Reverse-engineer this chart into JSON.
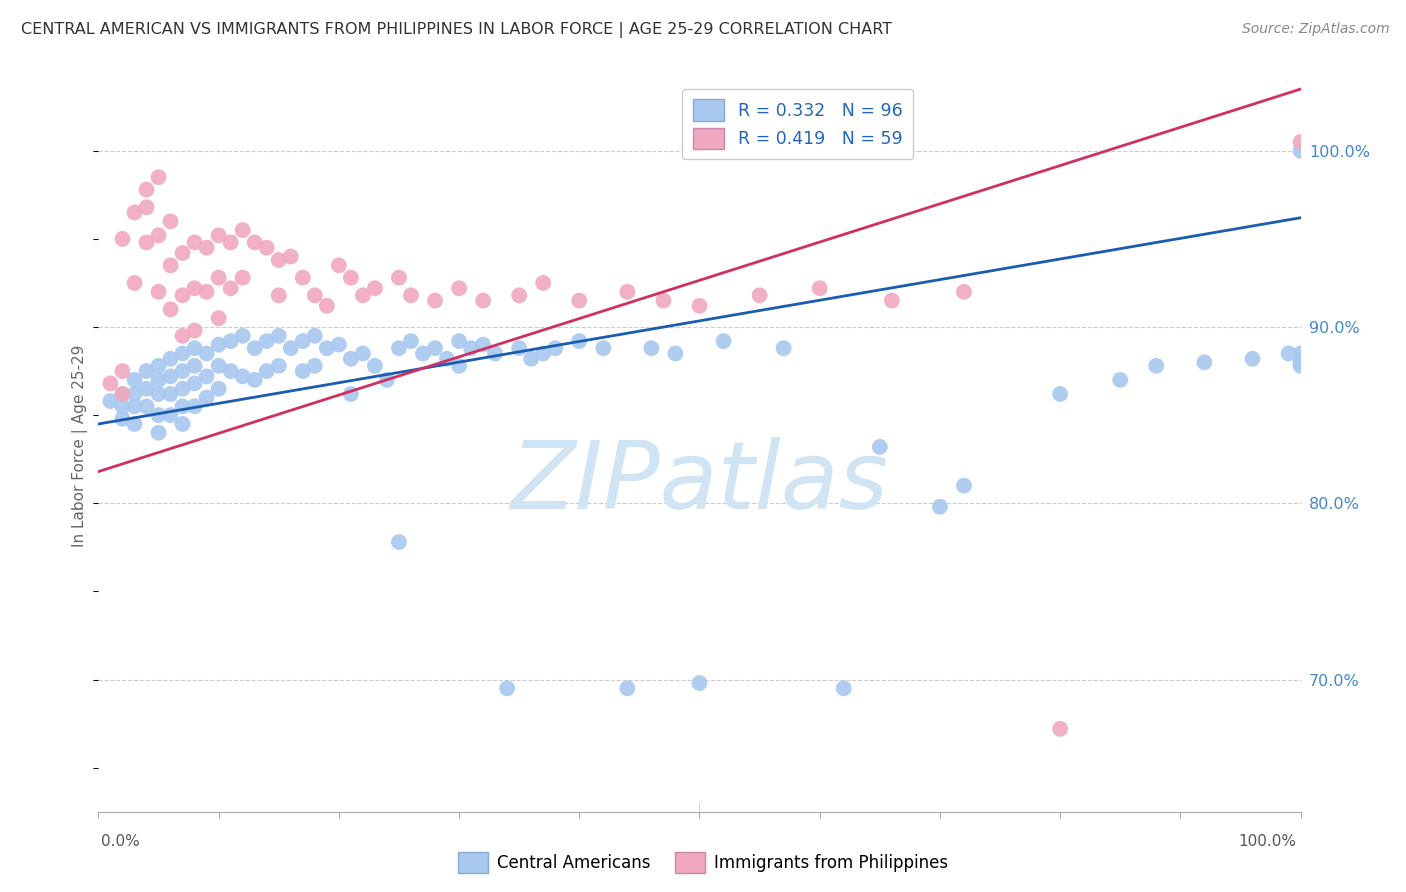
{
  "title": "CENTRAL AMERICAN VS IMMIGRANTS FROM PHILIPPINES IN LABOR FORCE | AGE 25-29 CORRELATION CHART",
  "source": "Source: ZipAtlas.com",
  "ylabel": "In Labor Force | Age 25-29",
  "right_ytick_vals": [
    0.7,
    0.8,
    0.9,
    1.0
  ],
  "right_ytick_labels": [
    "70.0%",
    "80.0%",
    "90.0%",
    "100.0%"
  ],
  "blue_color": "#A8C8F0",
  "pink_color": "#F0A8C0",
  "blue_line_color": "#1A5CB0",
  "pink_line_color": "#D03060",
  "xlim": [
    0.0,
    1.0
  ],
  "ylim": [
    0.625,
    1.04
  ],
  "blue_line_x0": 0.0,
  "blue_line_y0": 0.845,
  "blue_line_x1": 1.0,
  "blue_line_y1": 0.962,
  "pink_line_x0": 0.0,
  "pink_line_y0": 0.818,
  "pink_line_x1": 1.0,
  "pink_line_y1": 1.035,
  "watermark": "ZIPatlas",
  "watermark_color": "#D0E4F4",
  "blue_scatter_x": [
    0.01,
    0.02,
    0.02,
    0.02,
    0.03,
    0.03,
    0.03,
    0.03,
    0.04,
    0.04,
    0.04,
    0.05,
    0.05,
    0.05,
    0.05,
    0.05,
    0.06,
    0.06,
    0.06,
    0.06,
    0.07,
    0.07,
    0.07,
    0.07,
    0.07,
    0.08,
    0.08,
    0.08,
    0.08,
    0.09,
    0.09,
    0.09,
    0.1,
    0.1,
    0.1,
    0.11,
    0.11,
    0.12,
    0.12,
    0.13,
    0.13,
    0.14,
    0.14,
    0.15,
    0.15,
    0.16,
    0.17,
    0.17,
    0.18,
    0.18,
    0.19,
    0.2,
    0.21,
    0.21,
    0.22,
    0.23,
    0.24,
    0.25,
    0.25,
    0.26,
    0.27,
    0.28,
    0.29,
    0.3,
    0.3,
    0.31,
    0.32,
    0.33,
    0.34,
    0.35,
    0.36,
    0.37,
    0.38,
    0.4,
    0.42,
    0.44,
    0.46,
    0.48,
    0.5,
    0.52,
    0.57,
    0.62,
    0.65,
    0.7,
    0.72,
    0.8,
    0.85,
    0.88,
    0.92,
    0.96,
    0.99,
    1.0,
    1.0,
    1.0,
    1.0,
    1.0
  ],
  "blue_scatter_y": [
    0.858,
    0.862,
    0.855,
    0.848,
    0.87,
    0.862,
    0.855,
    0.845,
    0.875,
    0.865,
    0.855,
    0.878,
    0.87,
    0.862,
    0.85,
    0.84,
    0.882,
    0.872,
    0.862,
    0.85,
    0.885,
    0.875,
    0.865,
    0.855,
    0.845,
    0.888,
    0.878,
    0.868,
    0.855,
    0.885,
    0.872,
    0.86,
    0.89,
    0.878,
    0.865,
    0.892,
    0.875,
    0.895,
    0.872,
    0.888,
    0.87,
    0.892,
    0.875,
    0.895,
    0.878,
    0.888,
    0.892,
    0.875,
    0.895,
    0.878,
    0.888,
    0.89,
    0.882,
    0.862,
    0.885,
    0.878,
    0.87,
    0.888,
    0.778,
    0.892,
    0.885,
    0.888,
    0.882,
    0.892,
    0.878,
    0.888,
    0.89,
    0.885,
    0.695,
    0.888,
    0.882,
    0.885,
    0.888,
    0.892,
    0.888,
    0.695,
    0.888,
    0.885,
    0.698,
    0.892,
    0.888,
    0.695,
    0.832,
    0.798,
    0.81,
    0.862,
    0.87,
    0.878,
    0.88,
    0.882,
    0.885,
    1.0,
    0.88,
    0.885,
    0.878,
    0.882
  ],
  "pink_scatter_x": [
    0.01,
    0.02,
    0.02,
    0.02,
    0.03,
    0.03,
    0.04,
    0.04,
    0.04,
    0.05,
    0.05,
    0.05,
    0.06,
    0.06,
    0.06,
    0.07,
    0.07,
    0.07,
    0.08,
    0.08,
    0.08,
    0.09,
    0.09,
    0.1,
    0.1,
    0.1,
    0.11,
    0.11,
    0.12,
    0.12,
    0.13,
    0.14,
    0.15,
    0.15,
    0.16,
    0.17,
    0.18,
    0.19,
    0.2,
    0.21,
    0.22,
    0.23,
    0.25,
    0.26,
    0.28,
    0.3,
    0.32,
    0.35,
    0.37,
    0.4,
    0.44,
    0.47,
    0.5,
    0.55,
    0.6,
    0.66,
    0.72,
    0.8,
    1.0
  ],
  "pink_scatter_y": [
    0.868,
    0.875,
    0.862,
    0.95,
    0.965,
    0.925,
    0.978,
    0.948,
    0.968,
    0.985,
    0.952,
    0.92,
    0.96,
    0.935,
    0.91,
    0.942,
    0.918,
    0.895,
    0.948,
    0.922,
    0.898,
    0.945,
    0.92,
    0.952,
    0.928,
    0.905,
    0.948,
    0.922,
    0.955,
    0.928,
    0.948,
    0.945,
    0.938,
    0.918,
    0.94,
    0.928,
    0.918,
    0.912,
    0.935,
    0.928,
    0.918,
    0.922,
    0.928,
    0.918,
    0.915,
    0.922,
    0.915,
    0.918,
    0.925,
    0.915,
    0.92,
    0.915,
    0.912,
    0.918,
    0.922,
    0.915,
    0.92,
    0.672,
    1.005
  ]
}
